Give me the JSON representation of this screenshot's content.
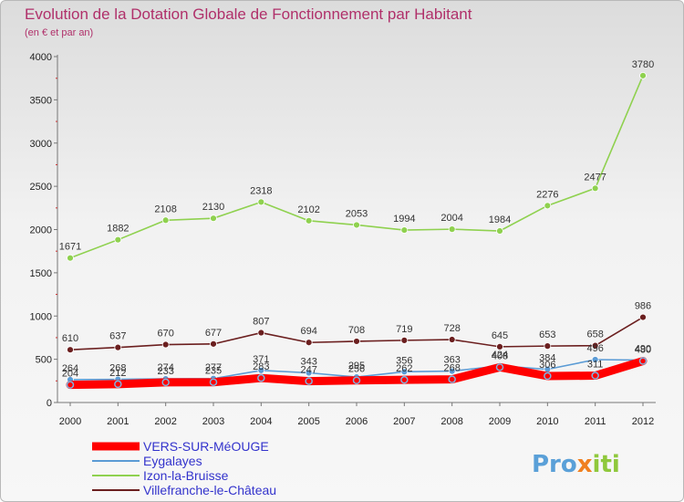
{
  "chart_data": {
    "type": "line",
    "title": "Evolution de la Dotation Globale de Fonctionnement par Habitant",
    "subtitle": "(en € et par an)",
    "x": [
      "2000",
      "2001",
      "2002",
      "2003",
      "2004",
      "2005",
      "2006",
      "2007",
      "2008",
      "2009",
      "2010",
      "2011",
      "2012"
    ],
    "ylim": [
      0,
      4000
    ],
    "yticks": [
      "0",
      "500",
      "1000",
      "1500",
      "2000",
      "2500",
      "3000",
      "3500",
      "4000"
    ],
    "series": [
      {
        "name": "VERS-SUR-MéOUGE",
        "color": "#ff0000",
        "values": [
          204,
          212,
          233,
          235,
          283,
          247,
          256,
          262,
          268,
          408,
          306,
          311,
          480
        ]
      },
      {
        "name": "Eygalayes",
        "color": "#5b9bd5",
        "values": [
          264,
          268,
          274,
          277,
          371,
          343,
          295,
          356,
          363,
          424,
          384,
          496,
          490
        ]
      },
      {
        "name": "Izon-la-Bruisse",
        "color": "#8fd14f",
        "values": [
          1671,
          1882,
          2108,
          2130,
          2318,
          2102,
          2053,
          1994,
          2004,
          1984,
          2276,
          2477,
          3780
        ]
      },
      {
        "name": "Villefranche-le-Château",
        "color": "#6b1f1f",
        "values": [
          610,
          637,
          670,
          677,
          807,
          694,
          708,
          719,
          728,
          645,
          653,
          658,
          986
        ]
      }
    ]
  },
  "logo": {
    "text_pro": "Pro",
    "text_x": "x",
    "text_iti": "iti"
  }
}
